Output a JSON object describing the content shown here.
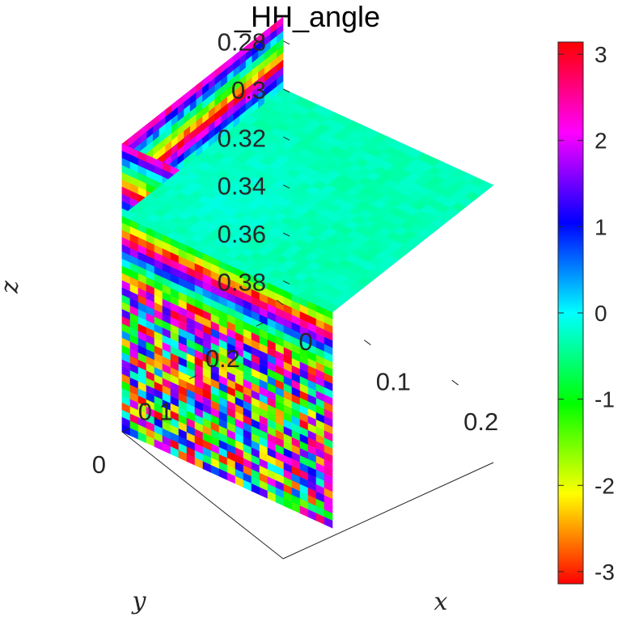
{
  "chart_data": {
    "type": "heatmap",
    "variant": "3d-slice",
    "title": "_HH_angle",
    "xlabel": "x",
    "ylabel": "y",
    "zlabel": "z",
    "xlim": [
      0,
      0.24
    ],
    "ylim": [
      0,
      0.24
    ],
    "zlim": [
      0.27,
      0.39
    ],
    "z_reversed": true,
    "x_ticks": [
      "0",
      "0.1",
      "0.2"
    ],
    "y_ticks": [
      "0",
      "0.1",
      "0.2"
    ],
    "z_ticks": [
      "0.28",
      "0.3",
      "0.32",
      "0.34",
      "0.36",
      "0.38"
    ],
    "colormap": "hsv",
    "clim": [
      -3.1416,
      3.1416
    ],
    "colorbar_ticks": [
      "3",
      "2",
      "1",
      "0",
      "-1",
      "-2",
      "-3"
    ],
    "slices": [
      {
        "plane": "z",
        "at": 0.3,
        "pattern": "near-uniform",
        "approx_value": -0.3
      },
      {
        "plane": "x",
        "at": 0,
        "pattern": "horizontal phase bands, noisy at depth"
      },
      {
        "plane": "y",
        "at": 0,
        "pattern": "horizontal phase bands, noisy at depth"
      }
    ]
  }
}
